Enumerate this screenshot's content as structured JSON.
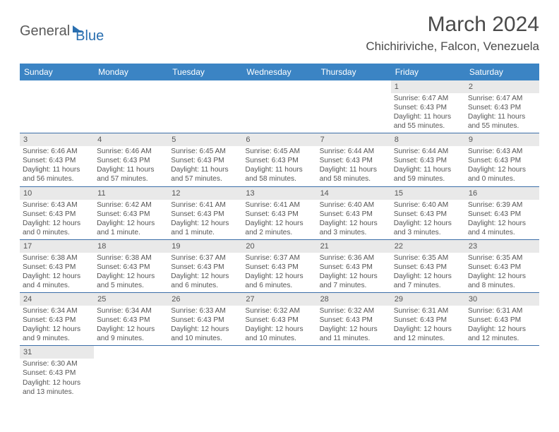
{
  "logo": {
    "general": "General",
    "blue": "Blue"
  },
  "title": "March 2024",
  "location": "Chichiriviche, Falcon, Venezuela",
  "colors": {
    "header_bg": "#3b84c4",
    "header_text": "#ffffff",
    "daynum_bg": "#e9e9e9",
    "border": "#3b6ea8",
    "text": "#4a4a4a"
  },
  "day_names": [
    "Sunday",
    "Monday",
    "Tuesday",
    "Wednesday",
    "Thursday",
    "Friday",
    "Saturday"
  ],
  "weeks": [
    [
      {
        "n": "",
        "sr": "",
        "ss": "",
        "dl": ""
      },
      {
        "n": "",
        "sr": "",
        "ss": "",
        "dl": ""
      },
      {
        "n": "",
        "sr": "",
        "ss": "",
        "dl": ""
      },
      {
        "n": "",
        "sr": "",
        "ss": "",
        "dl": ""
      },
      {
        "n": "",
        "sr": "",
        "ss": "",
        "dl": ""
      },
      {
        "n": "1",
        "sr": "Sunrise: 6:47 AM",
        "ss": "Sunset: 6:43 PM",
        "dl": "Daylight: 11 hours and 55 minutes."
      },
      {
        "n": "2",
        "sr": "Sunrise: 6:47 AM",
        "ss": "Sunset: 6:43 PM",
        "dl": "Daylight: 11 hours and 55 minutes."
      }
    ],
    [
      {
        "n": "3",
        "sr": "Sunrise: 6:46 AM",
        "ss": "Sunset: 6:43 PM",
        "dl": "Daylight: 11 hours and 56 minutes."
      },
      {
        "n": "4",
        "sr": "Sunrise: 6:46 AM",
        "ss": "Sunset: 6:43 PM",
        "dl": "Daylight: 11 hours and 57 minutes."
      },
      {
        "n": "5",
        "sr": "Sunrise: 6:45 AM",
        "ss": "Sunset: 6:43 PM",
        "dl": "Daylight: 11 hours and 57 minutes."
      },
      {
        "n": "6",
        "sr": "Sunrise: 6:45 AM",
        "ss": "Sunset: 6:43 PM",
        "dl": "Daylight: 11 hours and 58 minutes."
      },
      {
        "n": "7",
        "sr": "Sunrise: 6:44 AM",
        "ss": "Sunset: 6:43 PM",
        "dl": "Daylight: 11 hours and 58 minutes."
      },
      {
        "n": "8",
        "sr": "Sunrise: 6:44 AM",
        "ss": "Sunset: 6:43 PM",
        "dl": "Daylight: 11 hours and 59 minutes."
      },
      {
        "n": "9",
        "sr": "Sunrise: 6:43 AM",
        "ss": "Sunset: 6:43 PM",
        "dl": "Daylight: 12 hours and 0 minutes."
      }
    ],
    [
      {
        "n": "10",
        "sr": "Sunrise: 6:43 AM",
        "ss": "Sunset: 6:43 PM",
        "dl": "Daylight: 12 hours and 0 minutes."
      },
      {
        "n": "11",
        "sr": "Sunrise: 6:42 AM",
        "ss": "Sunset: 6:43 PM",
        "dl": "Daylight: 12 hours and 1 minute."
      },
      {
        "n": "12",
        "sr": "Sunrise: 6:41 AM",
        "ss": "Sunset: 6:43 PM",
        "dl": "Daylight: 12 hours and 1 minute."
      },
      {
        "n": "13",
        "sr": "Sunrise: 6:41 AM",
        "ss": "Sunset: 6:43 PM",
        "dl": "Daylight: 12 hours and 2 minutes."
      },
      {
        "n": "14",
        "sr": "Sunrise: 6:40 AM",
        "ss": "Sunset: 6:43 PM",
        "dl": "Daylight: 12 hours and 3 minutes."
      },
      {
        "n": "15",
        "sr": "Sunrise: 6:40 AM",
        "ss": "Sunset: 6:43 PM",
        "dl": "Daylight: 12 hours and 3 minutes."
      },
      {
        "n": "16",
        "sr": "Sunrise: 6:39 AM",
        "ss": "Sunset: 6:43 PM",
        "dl": "Daylight: 12 hours and 4 minutes."
      }
    ],
    [
      {
        "n": "17",
        "sr": "Sunrise: 6:38 AM",
        "ss": "Sunset: 6:43 PM",
        "dl": "Daylight: 12 hours and 4 minutes."
      },
      {
        "n": "18",
        "sr": "Sunrise: 6:38 AM",
        "ss": "Sunset: 6:43 PM",
        "dl": "Daylight: 12 hours and 5 minutes."
      },
      {
        "n": "19",
        "sr": "Sunrise: 6:37 AM",
        "ss": "Sunset: 6:43 PM",
        "dl": "Daylight: 12 hours and 6 minutes."
      },
      {
        "n": "20",
        "sr": "Sunrise: 6:37 AM",
        "ss": "Sunset: 6:43 PM",
        "dl": "Daylight: 12 hours and 6 minutes."
      },
      {
        "n": "21",
        "sr": "Sunrise: 6:36 AM",
        "ss": "Sunset: 6:43 PM",
        "dl": "Daylight: 12 hours and 7 minutes."
      },
      {
        "n": "22",
        "sr": "Sunrise: 6:35 AM",
        "ss": "Sunset: 6:43 PM",
        "dl": "Daylight: 12 hours and 7 minutes."
      },
      {
        "n": "23",
        "sr": "Sunrise: 6:35 AM",
        "ss": "Sunset: 6:43 PM",
        "dl": "Daylight: 12 hours and 8 minutes."
      }
    ],
    [
      {
        "n": "24",
        "sr": "Sunrise: 6:34 AM",
        "ss": "Sunset: 6:43 PM",
        "dl": "Daylight: 12 hours and 9 minutes."
      },
      {
        "n": "25",
        "sr": "Sunrise: 6:34 AM",
        "ss": "Sunset: 6:43 PM",
        "dl": "Daylight: 12 hours and 9 minutes."
      },
      {
        "n": "26",
        "sr": "Sunrise: 6:33 AM",
        "ss": "Sunset: 6:43 PM",
        "dl": "Daylight: 12 hours and 10 minutes."
      },
      {
        "n": "27",
        "sr": "Sunrise: 6:32 AM",
        "ss": "Sunset: 6:43 PM",
        "dl": "Daylight: 12 hours and 10 minutes."
      },
      {
        "n": "28",
        "sr": "Sunrise: 6:32 AM",
        "ss": "Sunset: 6:43 PM",
        "dl": "Daylight: 12 hours and 11 minutes."
      },
      {
        "n": "29",
        "sr": "Sunrise: 6:31 AM",
        "ss": "Sunset: 6:43 PM",
        "dl": "Daylight: 12 hours and 12 minutes."
      },
      {
        "n": "30",
        "sr": "Sunrise: 6:31 AM",
        "ss": "Sunset: 6:43 PM",
        "dl": "Daylight: 12 hours and 12 minutes."
      }
    ],
    [
      {
        "n": "31",
        "sr": "Sunrise: 6:30 AM",
        "ss": "Sunset: 6:43 PM",
        "dl": "Daylight: 12 hours and 13 minutes."
      },
      {
        "n": "",
        "sr": "",
        "ss": "",
        "dl": ""
      },
      {
        "n": "",
        "sr": "",
        "ss": "",
        "dl": ""
      },
      {
        "n": "",
        "sr": "",
        "ss": "",
        "dl": ""
      },
      {
        "n": "",
        "sr": "",
        "ss": "",
        "dl": ""
      },
      {
        "n": "",
        "sr": "",
        "ss": "",
        "dl": ""
      },
      {
        "n": "",
        "sr": "",
        "ss": "",
        "dl": ""
      }
    ]
  ]
}
